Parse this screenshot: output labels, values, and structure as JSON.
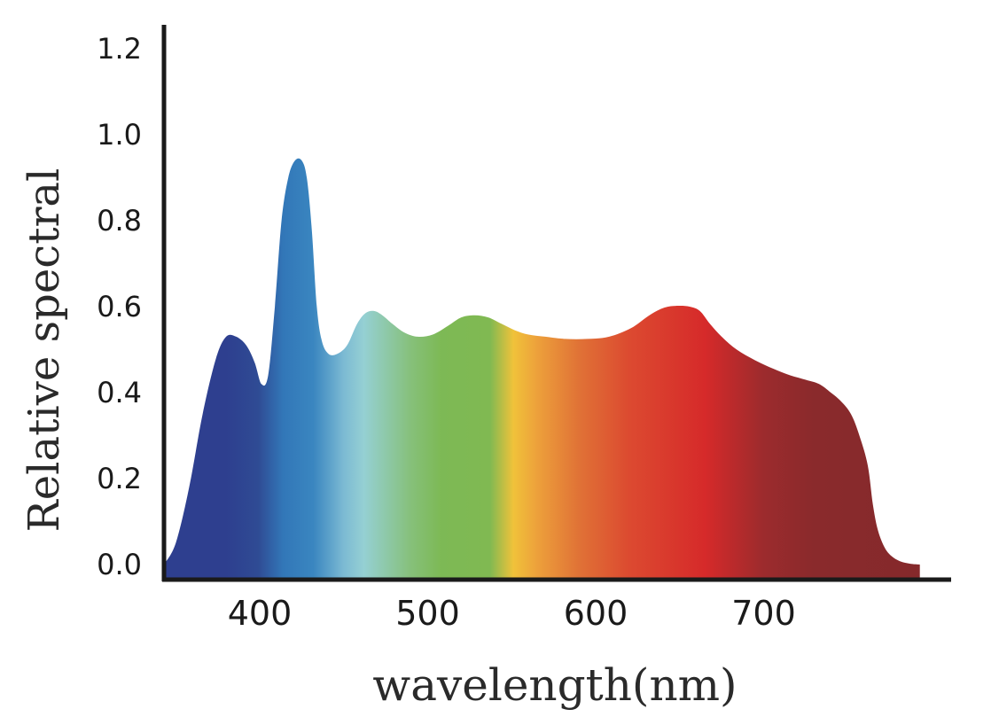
{
  "chart_data": {
    "type": "area",
    "xlabel": "wavelength(nm)",
    "ylabel": "Relative spectral",
    "xlim": [
      340,
      800
    ],
    "ylim": [
      0,
      1.25
    ],
    "x_ticks": [
      "400",
      "500",
      "600",
      "700"
    ],
    "y_ticks": [
      "0.0",
      "0.2",
      "0.4",
      "0.6",
      "0.8",
      "1.0",
      "1.2"
    ],
    "grid": false,
    "legend": "none",
    "series": [
      {
        "x": [
          343,
          350,
          358,
          366,
          374,
          380,
          386,
          392,
          397,
          401,
          405,
          409,
          413,
          417,
          421,
          425,
          428,
          431,
          434,
          437,
          441,
          446,
          452,
          458,
          463,
          468,
          473,
          479,
          486,
          494,
          503,
          512,
          520,
          528,
          536,
          544,
          552,
          560,
          570,
          582,
          595,
          608,
          621,
          632,
          641,
          649,
          656,
          662,
          668,
          675,
          684,
          695,
          706,
          716,
          725,
          733,
          740,
          746,
          752,
          757,
          762,
          765,
          768,
          772,
          776,
          781,
          787,
          793
        ],
        "y": [
          0.0,
          0.05,
          0.18,
          0.35,
          0.48,
          0.53,
          0.53,
          0.51,
          0.47,
          0.42,
          0.44,
          0.6,
          0.8,
          0.9,
          0.94,
          0.94,
          0.9,
          0.78,
          0.6,
          0.52,
          0.49,
          0.49,
          0.51,
          0.56,
          0.585,
          0.59,
          0.58,
          0.56,
          0.54,
          0.53,
          0.535,
          0.555,
          0.575,
          0.58,
          0.575,
          0.56,
          0.545,
          0.535,
          0.53,
          0.525,
          0.525,
          0.53,
          0.55,
          0.58,
          0.598,
          0.602,
          0.6,
          0.59,
          0.56,
          0.53,
          0.5,
          0.475,
          0.455,
          0.44,
          0.43,
          0.42,
          0.4,
          0.38,
          0.35,
          0.3,
          0.23,
          0.14,
          0.08,
          0.04,
          0.02,
          0.008,
          0.002,
          0.0
        ]
      }
    ],
    "gradient_stops": [
      {
        "x": 380,
        "color": "#2e3f8f"
      },
      {
        "x": 399,
        "color": "#2f4b94"
      },
      {
        "x": 414,
        "color": "#3277b8"
      },
      {
        "x": 432,
        "color": "#3a86c0"
      },
      {
        "x": 450,
        "color": "#7cbad3"
      },
      {
        "x": 462,
        "color": "#95d0d3"
      },
      {
        "x": 490,
        "color": "#86c07a"
      },
      {
        "x": 508,
        "color": "#7db955"
      },
      {
        "x": 537,
        "color": "#80b952"
      },
      {
        "x": 551,
        "color": "#f0c23a"
      },
      {
        "x": 565,
        "color": "#eda13b"
      },
      {
        "x": 590,
        "color": "#e07236"
      },
      {
        "x": 620,
        "color": "#dc4a30"
      },
      {
        "x": 665,
        "color": "#d62a2a"
      },
      {
        "x": 700,
        "color": "#9c2b2d"
      },
      {
        "x": 730,
        "color": "#8a2a2c"
      },
      {
        "x": 790,
        "color": "#85292b"
      }
    ],
    "colors": {
      "axis": "#1a1a1a",
      "text": "#1a1a1a"
    }
  }
}
